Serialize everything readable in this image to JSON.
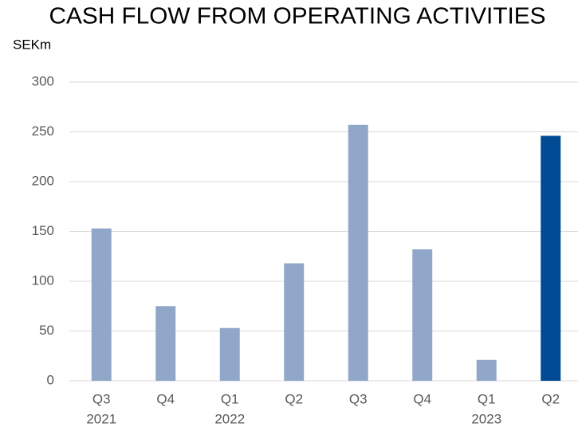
{
  "chart_data": {
    "type": "bar",
    "title": "CASH FLOW FROM OPERATING ACTIVITIES",
    "y_label": "SEKm",
    "categories": [
      "Q3",
      "Q4",
      "Q1",
      "Q2",
      "Q3",
      "Q4",
      "Q1",
      "Q2"
    ],
    "years": [
      "2021",
      null,
      "2022",
      null,
      null,
      null,
      "2023",
      null
    ],
    "values": [
      153,
      75,
      53,
      118,
      257,
      132,
      21,
      246
    ],
    "colors": [
      "#91a7c9",
      "#91a7c9",
      "#91a7c9",
      "#91a7c9",
      "#91a7c9",
      "#91a7c9",
      "#91a7c9",
      "#004b93"
    ],
    "ylim": [
      0,
      300
    ],
    "yticks": [
      0,
      50,
      100,
      150,
      200,
      250,
      300
    ],
    "grid": true
  }
}
